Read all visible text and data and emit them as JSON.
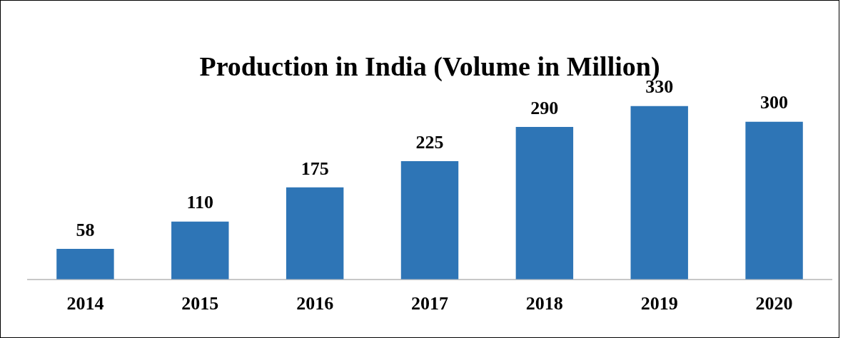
{
  "chart_data": {
    "type": "bar",
    "title": "Production in India (Volume in Million)",
    "categories": [
      "2014",
      "2015",
      "2016",
      "2017",
      "2018",
      "2019",
      "2020"
    ],
    "values": [
      58,
      110,
      175,
      225,
      290,
      330,
      300
    ],
    "color": "#2e75b6",
    "data_labels": true,
    "grid": false,
    "legend": false
  }
}
